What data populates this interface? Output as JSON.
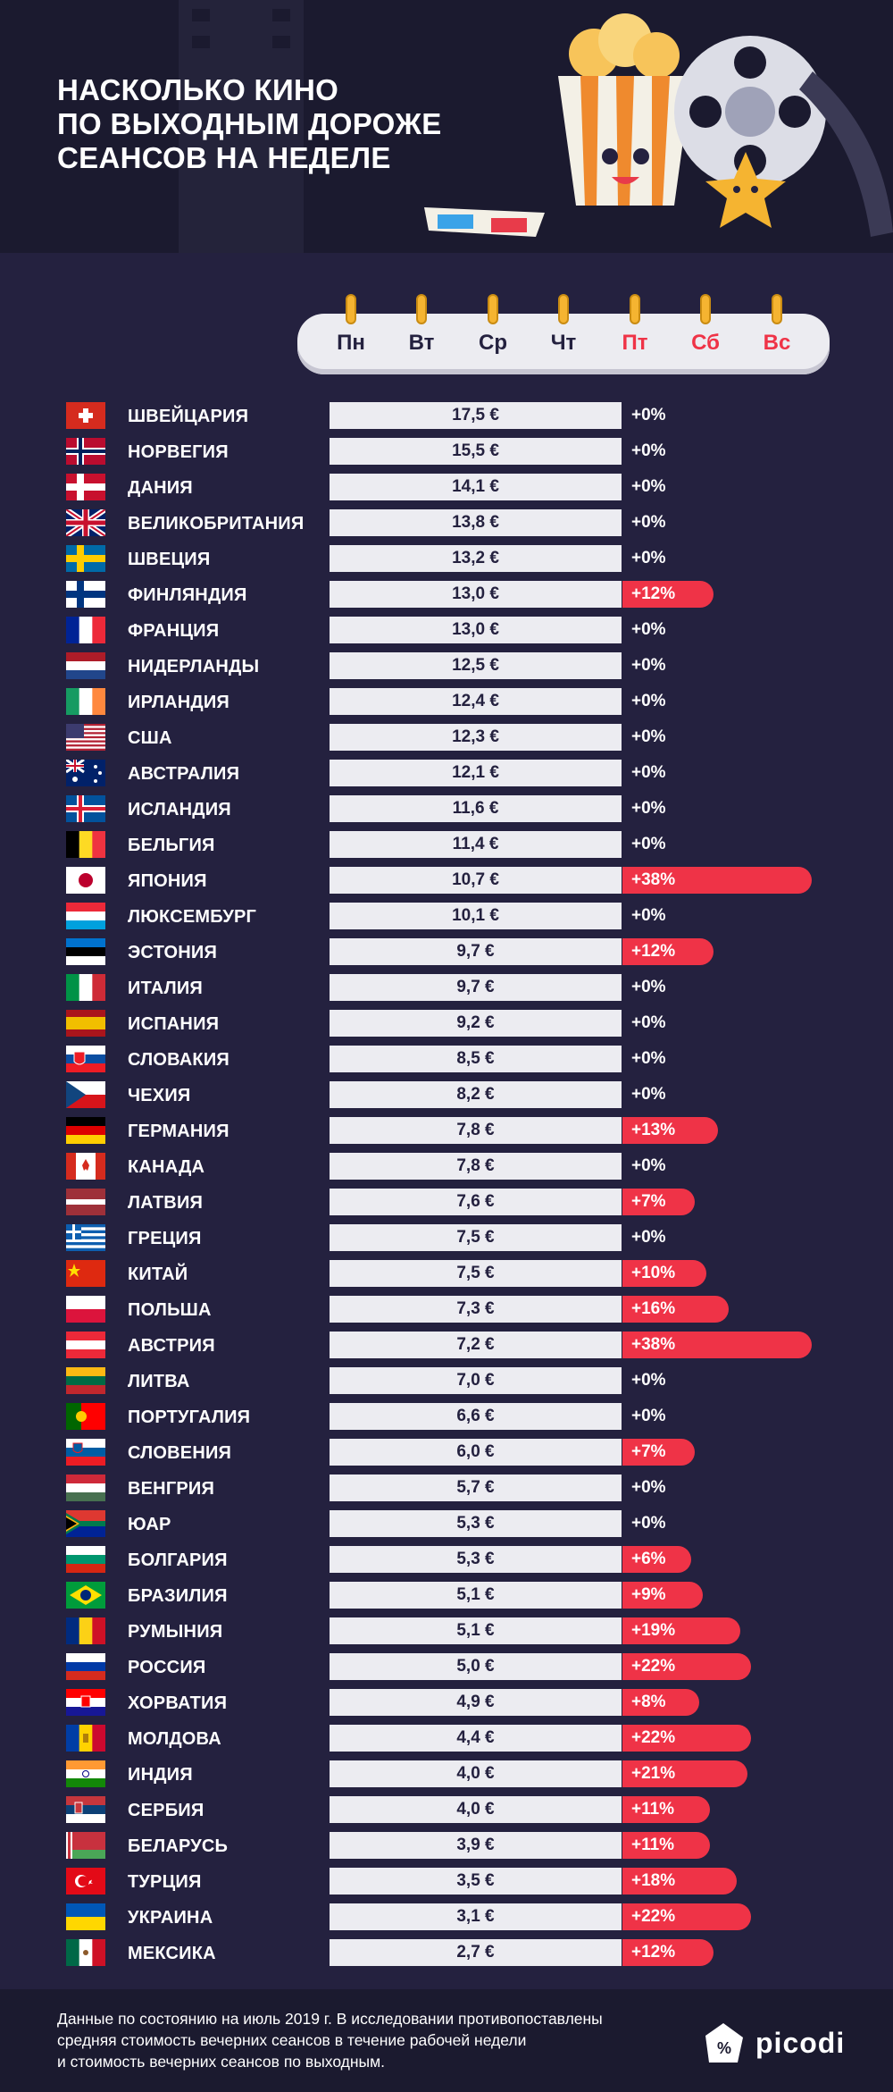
{
  "header": {
    "title_lines": [
      "НАСКОЛЬКО КИНО",
      "ПО ВЫХОДНЫМ ДОРОЖЕ",
      "СЕАНСОВ НА НЕДЕЛЕ"
    ]
  },
  "days": [
    {
      "label": "Пн",
      "weekend": false
    },
    {
      "label": "Вт",
      "weekend": false
    },
    {
      "label": "Ср",
      "weekend": false
    },
    {
      "label": "Чт",
      "weekend": false
    },
    {
      "label": "Пт",
      "weekend": true
    },
    {
      "label": "Сб",
      "weekend": true
    },
    {
      "label": "Вс",
      "weekend": true
    }
  ],
  "colors": {
    "background": "#24213f",
    "header": "#1b1a2f",
    "bar": "#ececf1",
    "bar_text": "#24213f",
    "accent": "#ef3347"
  },
  "chart_data": {
    "type": "bar",
    "unit": "€",
    "categories": [
      "ШВЕЙЦАРИЯ",
      "НОРВЕГИЯ",
      "ДАНИЯ",
      "ВЕЛИКОБРИТАНИЯ",
      "ШВЕЦИЯ",
      "ФИНЛЯНДИЯ",
      "ФРАНЦИЯ",
      "НИДЕРЛАНДЫ",
      "ИРЛАНДИЯ",
      "США",
      "АВСТРАЛИЯ",
      "ИСЛАНДИЯ",
      "БЕЛЬГИЯ",
      "ЯПОНИЯ",
      "ЛЮКСЕМБУРГ",
      "ЭСТОНИЯ",
      "ИТАЛИЯ",
      "ИСПАНИЯ",
      "СЛОВАКИЯ",
      "ЧЕХИЯ",
      "ГЕРМАНИЯ",
      "КАНАДА",
      "ЛАТВИЯ",
      "ГРЕЦИЯ",
      "КИТАЙ",
      "ПОЛЬША",
      "АВСТРИЯ",
      "ЛИТВА",
      "ПОРТУГАЛИЯ",
      "СЛОВЕНИЯ",
      "ВЕНГРИЯ",
      "ЮАР",
      "БОЛГАРИЯ",
      "БРАЗИЛИЯ",
      "РУМЫНИЯ",
      "РОССИЯ",
      "ХОРВАТИЯ",
      "МОЛДОВА",
      "ИНДИЯ",
      "СЕРБИЯ",
      "БЕЛАРУСЬ",
      "ТУРЦИЯ",
      "УКРАИНА",
      "МЕКСИКА"
    ],
    "prices": [
      "17,5 €",
      "15,5 €",
      "14,1 €",
      "13,8 €",
      "13,2 €",
      "13,0 €",
      "13,0 €",
      "12,5 €",
      "12,4 €",
      "12,3 €",
      "12,1 €",
      "11,6 €",
      "11,4 €",
      "10,7 €",
      "10,1 €",
      "9,7 €",
      "9,7 €",
      "9,2 €",
      "8,5 €",
      "8,2 €",
      "7,8 €",
      "7,8 €",
      "7,6 €",
      "7,5 €",
      "7,5 €",
      "7,3 €",
      "7,2 €",
      "7,0 €",
      "6,6 €",
      "6,0 €",
      "5,7 €",
      "5,3 €",
      "5,3 €",
      "5,1 €",
      "5,1 €",
      "5,0 €",
      "4,9 €",
      "4,4 €",
      "4,0 €",
      "4,0 €",
      "3,9 €",
      "3,5 €",
      "3,1 €",
      "2,7 €"
    ],
    "weekend_markup_labels": [
      "+0%",
      "+0%",
      "+0%",
      "+0%",
      "+0%",
      "+12%",
      "+0%",
      "+0%",
      "+0%",
      "+0%",
      "+0%",
      "+0%",
      "+0%",
      "+38%",
      "+0%",
      "+12%",
      "+0%",
      "+0%",
      "+0%",
      "+0%",
      "+13%",
      "+0%",
      "+7%",
      "+0%",
      "+10%",
      "+16%",
      "+38%",
      "+0%",
      "+0%",
      "+7%",
      "+0%",
      "+0%",
      "+6%",
      "+9%",
      "+19%",
      "+22%",
      "+8%",
      "+22%",
      "+21%",
      "+11%",
      "+11%",
      "+18%",
      "+22%",
      "+12%"
    ],
    "weekend_markup": [
      0,
      0,
      0,
      0,
      0,
      12,
      0,
      0,
      0,
      0,
      0,
      0,
      0,
      38,
      0,
      12,
      0,
      0,
      0,
      0,
      13,
      0,
      7,
      0,
      10,
      16,
      38,
      0,
      0,
      7,
      0,
      0,
      6,
      9,
      19,
      22,
      8,
      22,
      21,
      11,
      11,
      18,
      22,
      12
    ],
    "flags": [
      "ch",
      "no",
      "dk",
      "gb",
      "se",
      "fi",
      "fr",
      "nl",
      "ie",
      "us",
      "au",
      "is",
      "be",
      "jp",
      "lu",
      "ee",
      "it",
      "es",
      "sk",
      "cz",
      "de",
      "ca",
      "lv",
      "gr",
      "cn",
      "pl",
      "at",
      "lt",
      "pt",
      "si",
      "hu",
      "za",
      "bg",
      "br",
      "ro",
      "ru",
      "hr",
      "md",
      "in",
      "rs",
      "by",
      "tr",
      "ua",
      "mx"
    ]
  },
  "footer": {
    "note_lines": [
      "Данные по состоянию на июль 2019 г. В исследовании противопоставлены",
      "средняя стоимость вечерних сеансов в течение рабочей недели",
      "и стоимость вечерних сеансов по выходным."
    ],
    "brand": "picodi"
  }
}
